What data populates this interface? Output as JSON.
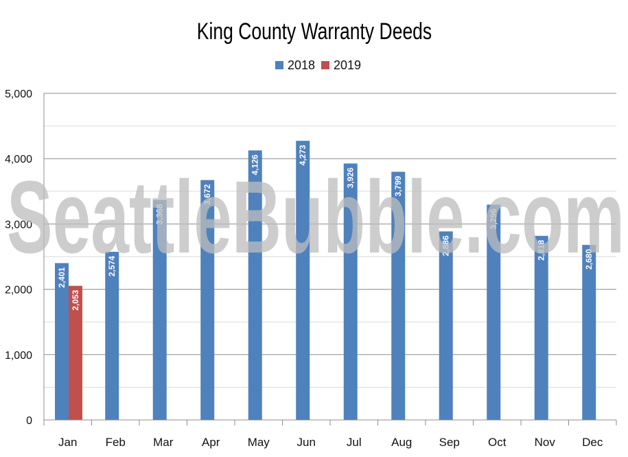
{
  "chart_data": {
    "type": "bar",
    "title": "King County Warranty Deeds",
    "categories": [
      "Jan",
      "Feb",
      "Mar",
      "Apr",
      "May",
      "Jun",
      "Jul",
      "Aug",
      "Sep",
      "Oct",
      "Nov",
      "Dec"
    ],
    "series": [
      {
        "name": "2018",
        "color": "#4f81bd",
        "values": [
          2401,
          2574,
          3368,
          3672,
          4126,
          4273,
          3926,
          3799,
          2886,
          3296,
          2818,
          2680
        ]
      },
      {
        "name": "2019",
        "color": "#c0504d",
        "values": [
          2053,
          null,
          null,
          null,
          null,
          null,
          null,
          null,
          null,
          null,
          null,
          null
        ]
      }
    ],
    "data_labels": {
      "2018": [
        "2,401",
        "2,574",
        "3,368",
        "3,672",
        "4,126",
        "4,273",
        "3,926",
        "3,799",
        "2,886",
        "3,296",
        "2,818",
        "2,680"
      ],
      "2019": [
        "2,053"
      ]
    },
    "y_ticks": [
      "0",
      "1,000",
      "2,000",
      "3,000",
      "4,000",
      "5,000"
    ],
    "ylim": [
      0,
      5000
    ],
    "xlabel": "",
    "ylabel": "",
    "grid": true,
    "legend_position": "top-center",
    "watermark": "SeattleBubble.com"
  }
}
